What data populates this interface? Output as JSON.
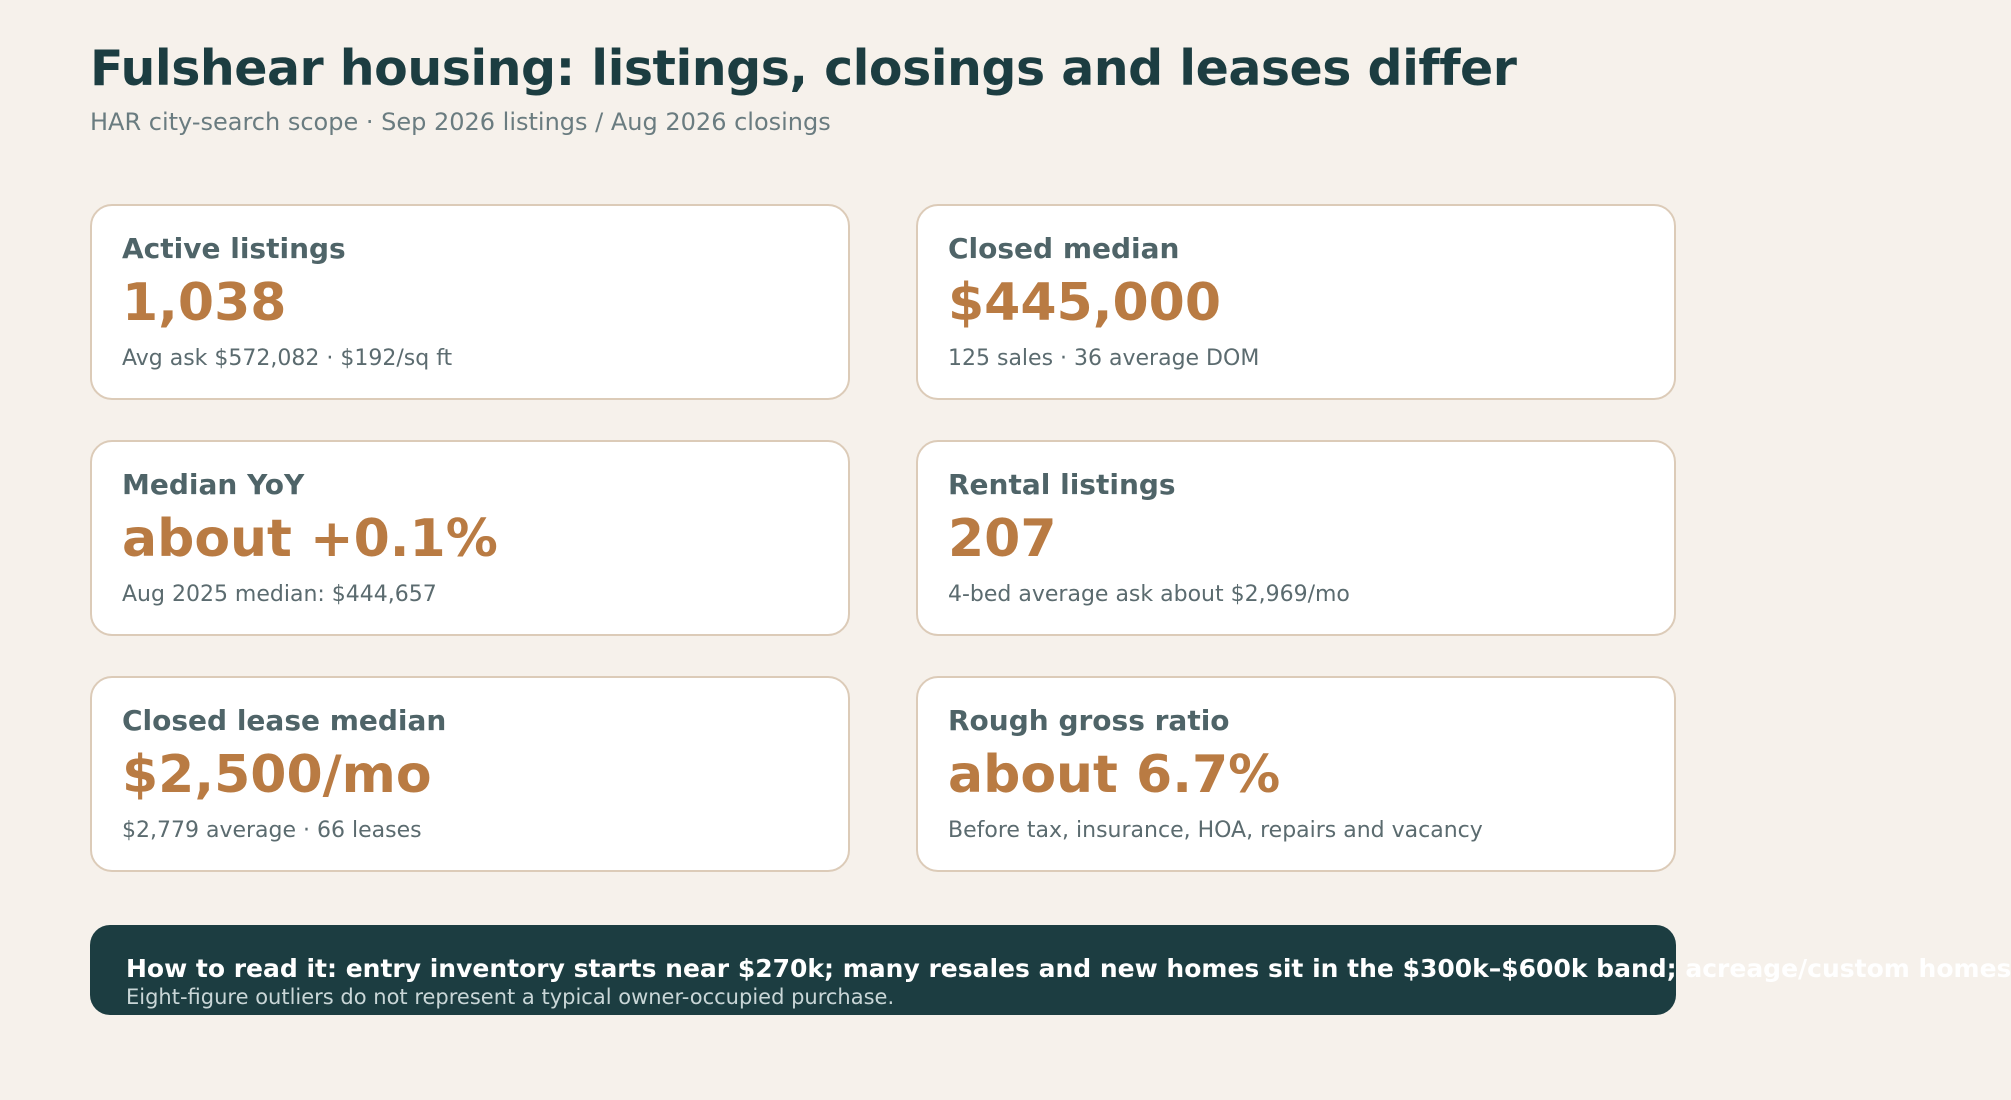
{
  "header": {
    "title": "Fulshear housing: listings, closings and leases differ",
    "subtitle": "HAR city-search scope · Sep 2026 listings / Aug 2026 closings"
  },
  "cards": [
    {
      "label": "Active listings",
      "value": "1,038",
      "note": "Avg ask $572,082 · $192/sq ft"
    },
    {
      "label": "Closed median",
      "value": "$445,000",
      "note": "125 sales · 36 average DOM"
    },
    {
      "label": "Median YoY",
      "value": "about +0.1%",
      "note": "Aug 2025 median: $444,657"
    },
    {
      "label": "Rental listings",
      "value": "207",
      "note": "4-bed average ask about $2,969/mo"
    },
    {
      "label": "Closed lease median",
      "value": "$2,500/mo",
      "note": "$2,779 average · 66 leases"
    },
    {
      "label": "Rough gross ratio",
      "value": "about 6.7%",
      "note": "Before tax, insurance, HOA, repairs and vacancy"
    }
  ],
  "note": {
    "headline": "How to read it: entry inventory starts near $270k; many resales and new homes sit in the $300k–$600k band; acreage/custom homes",
    "detail": "Eight-figure outliers do not represent a typical owner-occupied purchase."
  },
  "colors": {
    "background": "#f6f1eb",
    "title": "#1c3d41",
    "accent": "#b97b43",
    "card_border": "#dccbb8",
    "banner": "#1c3d41"
  }
}
